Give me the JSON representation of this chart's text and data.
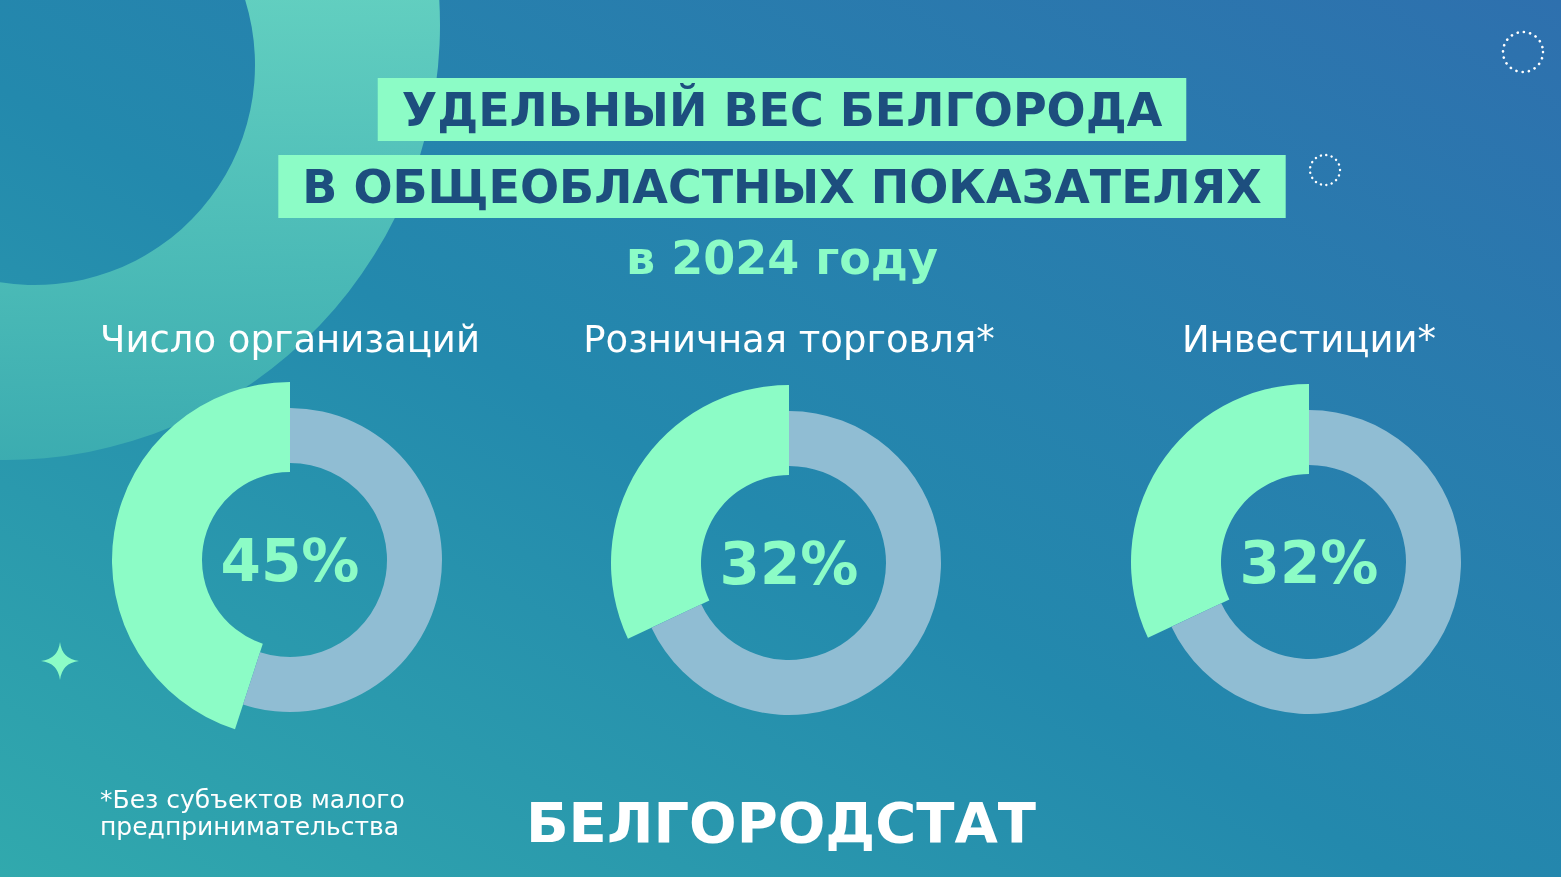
{
  "chart_data": [
    {
      "type": "other",
      "title": "УДЕЛЬНЫЙ ВЕС БЕЛГОРОДА\nВ ОБЩЕОБЛАСТНЫХ ПОКАЗАТЕЛЯХ",
      "subtitle": "в 2024 году",
      "annotations": [
        "*Без субъектов малого\nпредпринимательства",
        "БЕЛГОРОДСТАТ"
      ]
    },
    {
      "type": "donut",
      "title": "Число организаций",
      "categories": [
        null,
        null
      ],
      "values": [
        45,
        55
      ],
      "colors": [
        "#8cfcc6",
        "#90bdd3"
      ],
      "annotations": [
        "45%"
      ]
    },
    {
      "type": "donut",
      "title": "Розничная торговля*",
      "categories": [
        null,
        null
      ],
      "values": [
        32,
        68
      ],
      "colors": [
        "#8cfcc6",
        "#90bdd3"
      ],
      "annotations": [
        "32%"
      ]
    },
    {
      "type": "donut",
      "title": "Инвестиции*",
      "categories": [
        null,
        null
      ],
      "values": [
        32,
        68
      ],
      "colors": [
        "#8cfcc6",
        "#90bdd3"
      ],
      "annotations": [
        "32%"
      ]
    }
  ]
}
